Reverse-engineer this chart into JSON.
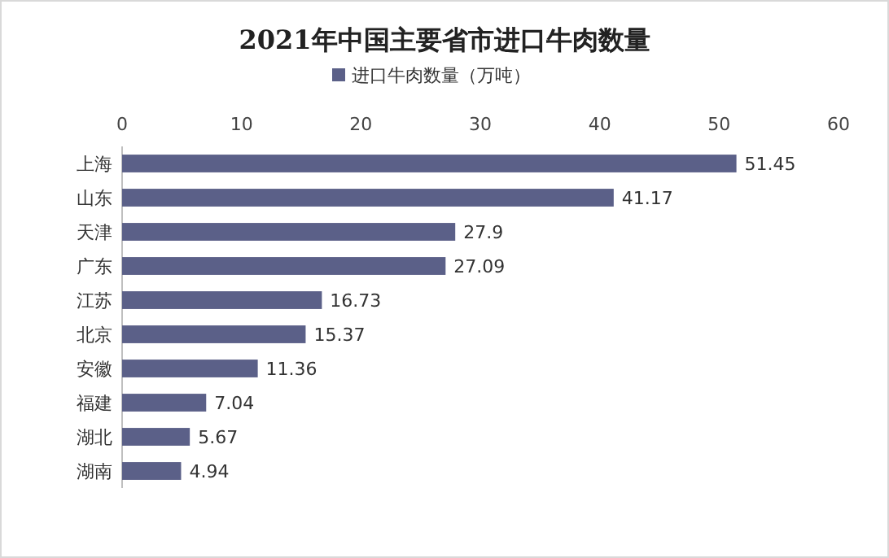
{
  "chart_data": {
    "type": "bar",
    "orientation": "horizontal",
    "title": "2021年中国主要省市进口牛肉数量",
    "categories": [
      "上海",
      "山东",
      "天津",
      "广东",
      "江苏",
      "北京",
      "安徽",
      "福建",
      "湖北",
      "湖南"
    ],
    "series": [
      {
        "name": "进口牛肉数量（万吨）",
        "color": "#5b6088",
        "values": [
          51.45,
          41.17,
          27.9,
          27.09,
          16.73,
          15.37,
          11.36,
          7.04,
          5.67,
          4.94
        ]
      }
    ],
    "xlim": [
      0,
      60
    ],
    "xticks": [
      0,
      10,
      20,
      30,
      40,
      50,
      60
    ],
    "data_labels": true,
    "legend": "top"
  }
}
